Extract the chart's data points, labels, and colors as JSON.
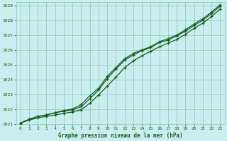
{
  "title": "Graphe pression niveau de la mer (hPa)",
  "bg_color": "#c8eef0",
  "grid_color": "#99ccbb",
  "line_color": "#1a5c1a",
  "xlim": [
    -0.5,
    23.5
  ],
  "ylim": [
    1021.0,
    1029.2
  ],
  "xticks": [
    0,
    1,
    2,
    3,
    4,
    5,
    6,
    7,
    8,
    9,
    10,
    11,
    12,
    13,
    14,
    15,
    16,
    17,
    18,
    19,
    20,
    21,
    22,
    23
  ],
  "yticks": [
    1021,
    1022,
    1023,
    1024,
    1025,
    1026,
    1027,
    1028,
    1029
  ],
  "line1_x": [
    0,
    1,
    2,
    3,
    4,
    5,
    6,
    7,
    8,
    9,
    10,
    11,
    12,
    13,
    14,
    15,
    16,
    17,
    18,
    19,
    20,
    21,
    22,
    23
  ],
  "line1_y": [
    1021.05,
    1021.3,
    1021.5,
    1021.6,
    1021.75,
    1021.9,
    1022.0,
    1022.3,
    1022.9,
    1023.4,
    1024.2,
    1024.8,
    1025.4,
    1025.75,
    1026.0,
    1026.2,
    1026.55,
    1026.75,
    1027.0,
    1027.35,
    1027.75,
    1028.1,
    1028.55,
    1029.05
  ],
  "line2_x": [
    0,
    1,
    2,
    3,
    4,
    5,
    6,
    7,
    8,
    9,
    10,
    11,
    12,
    13,
    14,
    15,
    16,
    17,
    18,
    19,
    20,
    21,
    22,
    23
  ],
  "line2_y": [
    1021.05,
    1021.3,
    1021.5,
    1021.6,
    1021.75,
    1021.85,
    1021.95,
    1022.15,
    1022.7,
    1023.3,
    1024.05,
    1024.7,
    1025.3,
    1025.65,
    1025.95,
    1026.15,
    1026.5,
    1026.65,
    1026.95,
    1027.25,
    1027.65,
    1028.0,
    1028.45,
    1028.95
  ],
  "line3_x": [
    0,
    1,
    2,
    3,
    4,
    5,
    6,
    7,
    8,
    9,
    10,
    11,
    12,
    13,
    14,
    15,
    16,
    17,
    18,
    19,
    20,
    21,
    22,
    23
  ],
  "line3_y": [
    1021.05,
    1021.25,
    1021.4,
    1021.5,
    1021.6,
    1021.7,
    1021.8,
    1021.95,
    1022.4,
    1022.95,
    1023.55,
    1024.15,
    1024.8,
    1025.25,
    1025.6,
    1025.9,
    1026.2,
    1026.45,
    1026.7,
    1027.05,
    1027.45,
    1027.8,
    1028.25,
    1028.75
  ]
}
